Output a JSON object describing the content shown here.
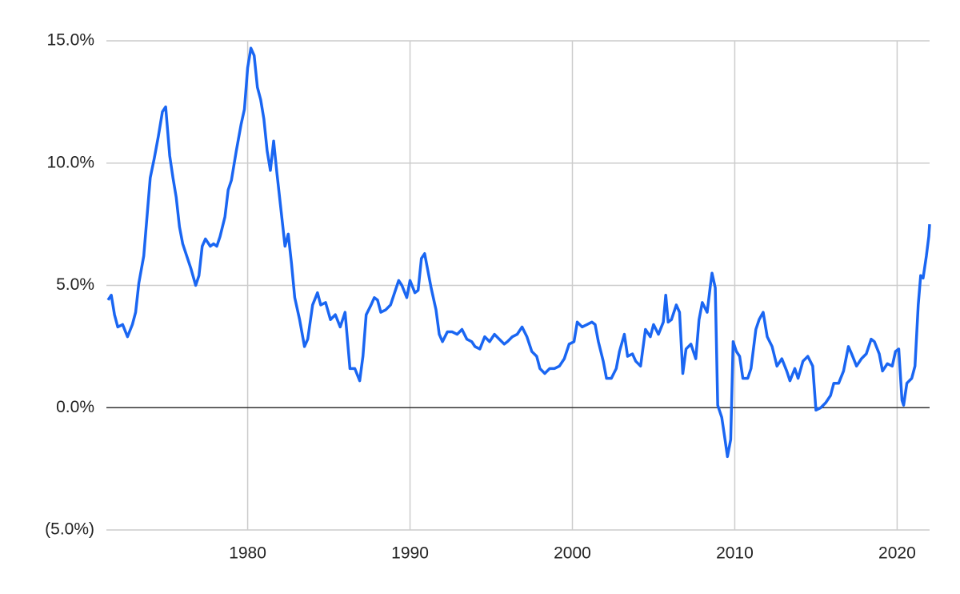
{
  "chart_data": {
    "type": "line",
    "x": [
      1971.4,
      1971.6,
      1971.8,
      1972.0,
      1972.3,
      1972.6,
      1972.9,
      1973.1,
      1973.3,
      1973.6,
      1973.75,
      1974.0,
      1974.25,
      1974.5,
      1974.75,
      1974.95,
      1975.2,
      1975.4,
      1975.6,
      1975.8,
      1976.0,
      1976.3,
      1976.5,
      1976.8,
      1977.0,
      1977.2,
      1977.4,
      1977.7,
      1977.9,
      1978.1,
      1978.3,
      1978.6,
      1978.8,
      1979.0,
      1979.3,
      1979.6,
      1979.8,
      1980.0,
      1980.2,
      1980.4,
      1980.6,
      1980.8,
      1981.0,
      1981.2,
      1981.4,
      1981.6,
      1981.8,
      1982.0,
      1982.3,
      1982.5,
      1982.7,
      1982.9,
      1983.2,
      1983.5,
      1983.7,
      1984.0,
      1984.3,
      1984.5,
      1984.8,
      1985.1,
      1985.4,
      1985.7,
      1986.0,
      1986.3,
      1986.6,
      1986.9,
      1987.1,
      1987.3,
      1987.6,
      1987.8,
      1988.0,
      1988.2,
      1988.5,
      1988.8,
      1989.0,
      1989.3,
      1989.5,
      1989.8,
      1990.0,
      1990.3,
      1990.5,
      1990.7,
      1990.9,
      1991.1,
      1991.3,
      1991.6,
      1991.8,
      1992.0,
      1992.3,
      1992.6,
      1992.9,
      1993.2,
      1993.5,
      1993.8,
      1994.0,
      1994.3,
      1994.6,
      1994.9,
      1995.2,
      1995.5,
      1995.8,
      1996.0,
      1996.3,
      1996.6,
      1996.9,
      1997.2,
      1997.5,
      1997.8,
      1998.0,
      1998.3,
      1998.6,
      1998.9,
      1999.2,
      1999.5,
      1999.8,
      2000.1,
      2000.3,
      2000.6,
      2000.9,
      2001.2,
      2001.4,
      2001.6,
      2001.9,
      2002.1,
      2002.4,
      2002.7,
      2002.9,
      2003.2,
      2003.4,
      2003.7,
      2003.9,
      2004.2,
      2004.5,
      2004.8,
      2005.0,
      2005.3,
      2005.6,
      2005.75,
      2005.9,
      2006.1,
      2006.4,
      2006.6,
      2006.8,
      2007.0,
      2007.3,
      2007.6,
      2007.8,
      2008.0,
      2008.3,
      2008.5,
      2008.6,
      2008.8,
      2008.95,
      2009.2,
      2009.4,
      2009.55,
      2009.75,
      2009.9,
      2010.1,
      2010.3,
      2010.5,
      2010.8,
      2011.0,
      2011.3,
      2011.5,
      2011.75,
      2012.0,
      2012.3,
      2012.6,
      2012.9,
      2013.2,
      2013.4,
      2013.7,
      2013.9,
      2014.2,
      2014.5,
      2014.8,
      2015.0,
      2015.3,
      2015.6,
      2015.9,
      2016.1,
      2016.4,
      2016.7,
      2017.0,
      2017.2,
      2017.5,
      2017.8,
      2018.1,
      2018.4,
      2018.6,
      2018.9,
      2019.1,
      2019.4,
      2019.7,
      2019.9,
      2020.1,
      2020.3,
      2020.4,
      2020.6,
      2020.9,
      2021.1,
      2021.3,
      2021.45,
      2021.6,
      2021.8,
      2021.95,
      2022.0
    ],
    "series": [
      {
        "color": "#1a66f2",
        "values": [
          4.4,
          4.6,
          3.8,
          3.3,
          3.4,
          2.9,
          3.4,
          3.9,
          5.1,
          6.2,
          7.4,
          9.4,
          10.2,
          11.1,
          12.1,
          12.3,
          10.3,
          9.4,
          8.6,
          7.4,
          6.7,
          6.1,
          5.7,
          5.0,
          5.4,
          6.6,
          6.9,
          6.6,
          6.7,
          6.6,
          7.0,
          7.8,
          8.9,
          9.3,
          10.5,
          11.6,
          12.2,
          13.9,
          14.7,
          14.4,
          13.1,
          12.6,
          11.8,
          10.5,
          9.7,
          10.9,
          9.6,
          8.4,
          6.6,
          7.1,
          5.9,
          4.5,
          3.6,
          2.5,
          2.8,
          4.2,
          4.7,
          4.2,
          4.3,
          3.6,
          3.8,
          3.3,
          3.9,
          1.6,
          1.6,
          1.1,
          2.1,
          3.8,
          4.2,
          4.5,
          4.4,
          3.9,
          4.0,
          4.2,
          4.6,
          5.2,
          5.0,
          4.5,
          5.2,
          4.7,
          4.8,
          6.1,
          6.3,
          5.6,
          4.9,
          4.0,
          3.0,
          2.7,
          3.1,
          3.1,
          3.0,
          3.2,
          2.8,
          2.7,
          2.5,
          2.4,
          2.9,
          2.7,
          3.0,
          2.8,
          2.6,
          2.7,
          2.9,
          3.0,
          3.3,
          2.9,
          2.3,
          2.1,
          1.6,
          1.4,
          1.6,
          1.6,
          1.7,
          2.0,
          2.6,
          2.7,
          3.5,
          3.3,
          3.4,
          3.5,
          3.4,
          2.7,
          1.9,
          1.2,
          1.2,
          1.6,
          2.3,
          3.0,
          2.1,
          2.2,
          1.9,
          1.7,
          3.2,
          2.9,
          3.4,
          3.0,
          3.5,
          4.6,
          3.5,
          3.6,
          4.2,
          3.9,
          1.4,
          2.4,
          2.6,
          2.0,
          3.6,
          4.3,
          3.9,
          5.0,
          5.5,
          4.9,
          0.1,
          -0.4,
          -1.3,
          -2.0,
          -1.3,
          2.7,
          2.3,
          2.1,
          1.2,
          1.2,
          1.6,
          3.2,
          3.6,
          3.9,
          2.9,
          2.5,
          1.7,
          2.0,
          1.5,
          1.1,
          1.6,
          1.2,
          1.9,
          2.1,
          1.7,
          -0.1,
          0.0,
          0.2,
          0.5,
          1.0,
          1.0,
          1.5,
          2.5,
          2.2,
          1.7,
          2.0,
          2.2,
          2.8,
          2.7,
          2.2,
          1.5,
          1.8,
          1.7,
          2.3,
          2.4,
          0.3,
          0.1,
          1.0,
          1.2,
          1.7,
          4.2,
          5.4,
          5.3,
          6.2,
          7.0,
          7.5
        ]
      }
    ],
    "xlim": [
      1971.3,
      2022.0
    ],
    "xticks": [
      1980,
      1990,
      2000,
      2010,
      2020
    ],
    "ylim": [
      -5,
      15
    ],
    "yticks": [
      {
        "value": -5,
        "label": "(5.0%)"
      },
      {
        "value": 0,
        "label": "0.0%"
      },
      {
        "value": 5,
        "label": "5.0%"
      },
      {
        "value": 10,
        "label": "10.0%"
      },
      {
        "value": 15,
        "label": "15.0%"
      }
    ],
    "grid": true
  }
}
